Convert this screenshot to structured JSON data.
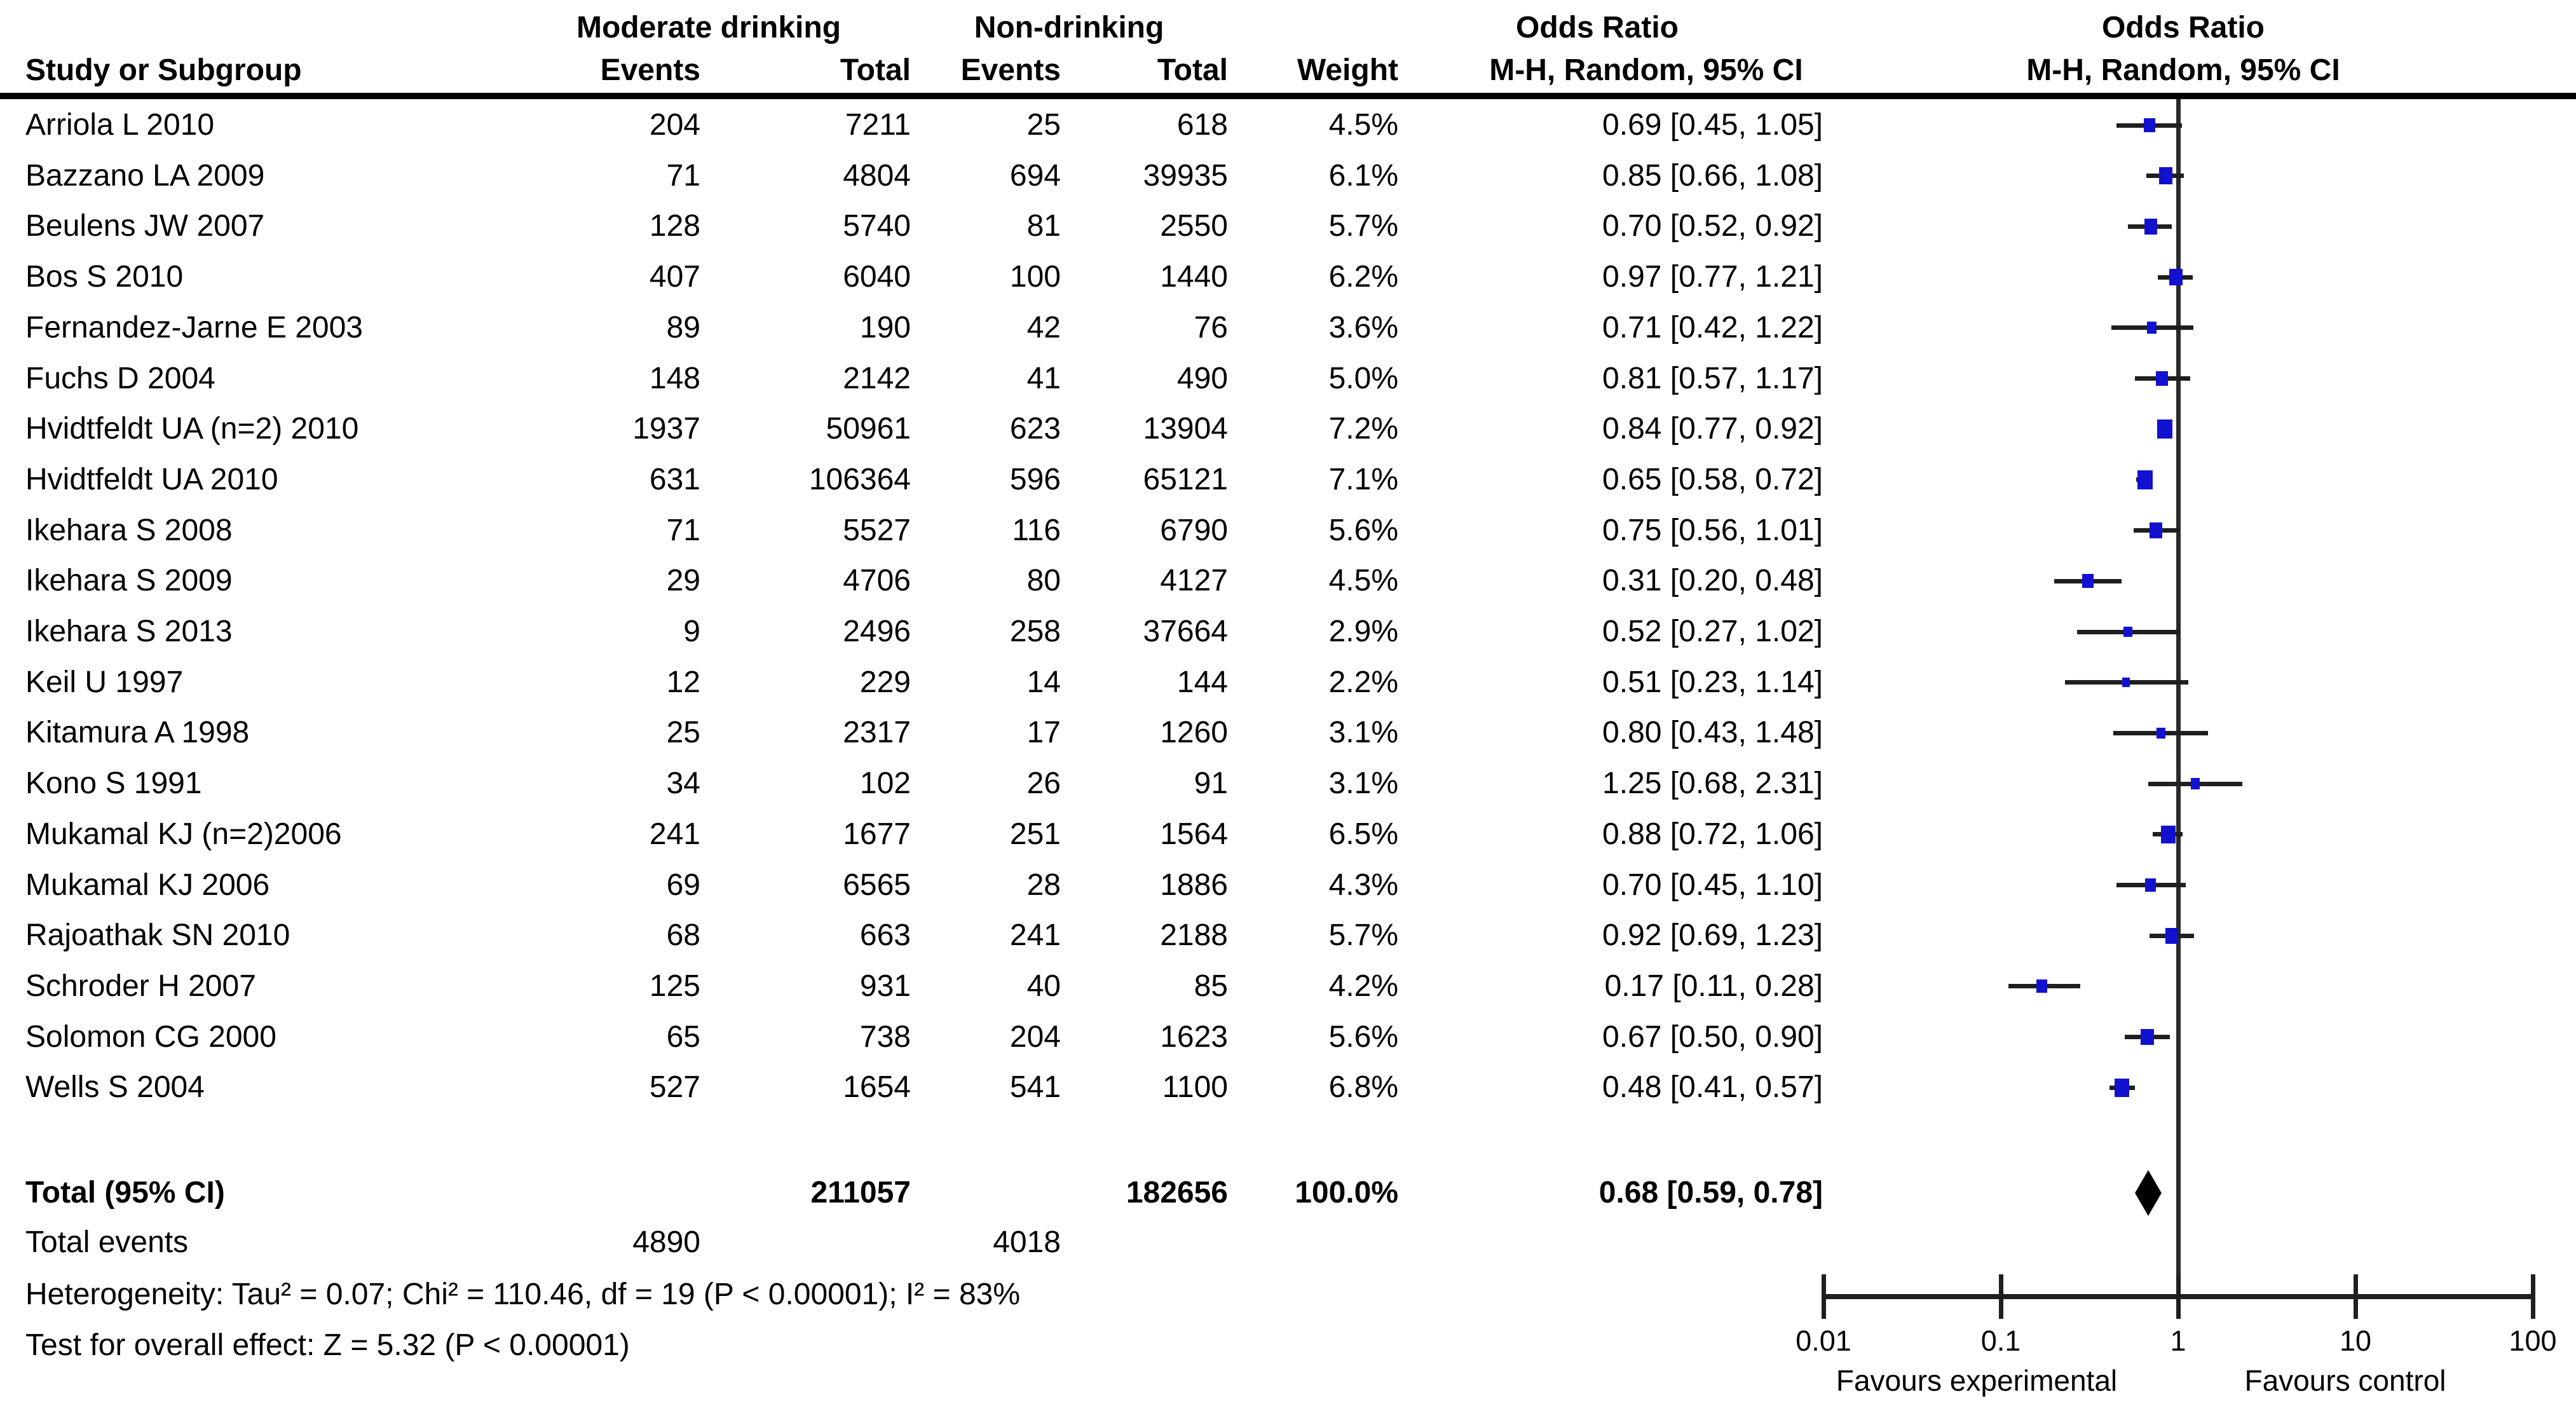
{
  "chart_data": {
    "type": "scatter",
    "subtype": "forest-plot-meta-analysis",
    "scale": "log",
    "group_headers": {
      "experimental": "Moderate drinking",
      "control": "Non-drinking",
      "or_text_col": "Odds Ratio",
      "or_plot_col": "Odds Ratio"
    },
    "column_headers": {
      "study": "Study or Subgroup",
      "events1": "Events",
      "total1": "Total",
      "events2": "Events",
      "total2": "Total",
      "weight": "Weight",
      "mh1": "M-H, Random, 95% CI",
      "mh2": "M-H, Random, 95% CI"
    },
    "studies": [
      {
        "name": "Arriola L 2010",
        "events1": "204",
        "total1": "7211",
        "events2": "25",
        "total2": "618",
        "weight": "4.5%",
        "weight_val": 4.5,
        "or_text": "0.69 [0.45, 1.05]",
        "or": 0.69,
        "lo": 0.45,
        "hi": 1.05
      },
      {
        "name": "Bazzano LA 2009",
        "events1": "71",
        "total1": "4804",
        "events2": "694",
        "total2": "39935",
        "weight": "6.1%",
        "weight_val": 6.1,
        "or_text": "0.85 [0.66, 1.08]",
        "or": 0.85,
        "lo": 0.66,
        "hi": 1.08
      },
      {
        "name": "Beulens JW 2007",
        "events1": "128",
        "total1": "5740",
        "events2": "81",
        "total2": "2550",
        "weight": "5.7%",
        "weight_val": 5.7,
        "or_text": "0.70 [0.52, 0.92]",
        "or": 0.7,
        "lo": 0.52,
        "hi": 0.92
      },
      {
        "name": "Bos S 2010",
        "events1": "407",
        "total1": "6040",
        "events2": "100",
        "total2": "1440",
        "weight": "6.2%",
        "weight_val": 6.2,
        "or_text": "0.97 [0.77, 1.21]",
        "or": 0.97,
        "lo": 0.77,
        "hi": 1.21
      },
      {
        "name": "Fernandez-Jarne E 2003",
        "events1": "89",
        "total1": "190",
        "events2": "42",
        "total2": "76",
        "weight": "3.6%",
        "weight_val": 3.6,
        "or_text": "0.71 [0.42, 1.22]",
        "or": 0.71,
        "lo": 0.42,
        "hi": 1.22
      },
      {
        "name": "Fuchs D 2004",
        "events1": "148",
        "total1": "2142",
        "events2": "41",
        "total2": "490",
        "weight": "5.0%",
        "weight_val": 5.0,
        "or_text": "0.81 [0.57, 1.17]",
        "or": 0.81,
        "lo": 0.57,
        "hi": 1.17
      },
      {
        "name": "Hvidtfeldt UA (n=2) 2010",
        "events1": "1937",
        "total1": "50961",
        "events2": "623",
        "total2": "13904",
        "weight": "7.2%",
        "weight_val": 7.2,
        "or_text": "0.84 [0.77, 0.92]",
        "or": 0.84,
        "lo": 0.77,
        "hi": 0.92
      },
      {
        "name": "Hvidtfeldt UA 2010",
        "events1": "631",
        "total1": "106364",
        "events2": "596",
        "total2": "65121",
        "weight": "7.1%",
        "weight_val": 7.1,
        "or_text": "0.65 [0.58, 0.72]",
        "or": 0.65,
        "lo": 0.58,
        "hi": 0.72
      },
      {
        "name": "Ikehara S 2008",
        "events1": "71",
        "total1": "5527",
        "events2": "116",
        "total2": "6790",
        "weight": "5.6%",
        "weight_val": 5.6,
        "or_text": "0.75 [0.56, 1.01]",
        "or": 0.75,
        "lo": 0.56,
        "hi": 1.01
      },
      {
        "name": "Ikehara S 2009",
        "events1": "29",
        "total1": "4706",
        "events2": "80",
        "total2": "4127",
        "weight": "4.5%",
        "weight_val": 4.5,
        "or_text": "0.31 [0.20, 0.48]",
        "or": 0.31,
        "lo": 0.2,
        "hi": 0.48
      },
      {
        "name": "Ikehara S 2013",
        "events1": "9",
        "total1": "2496",
        "events2": "258",
        "total2": "37664",
        "weight": "2.9%",
        "weight_val": 2.9,
        "or_text": "0.52 [0.27, 1.02]",
        "or": 0.52,
        "lo": 0.27,
        "hi": 1.02
      },
      {
        "name": "Keil U 1997",
        "events1": "12",
        "total1": "229",
        "events2": "14",
        "total2": "144",
        "weight": "2.2%",
        "weight_val": 2.2,
        "or_text": "0.51 [0.23, 1.14]",
        "or": 0.51,
        "lo": 0.23,
        "hi": 1.14
      },
      {
        "name": "Kitamura A 1998",
        "events1": "25",
        "total1": "2317",
        "events2": "17",
        "total2": "1260",
        "weight": "3.1%",
        "weight_val": 3.1,
        "or_text": "0.80 [0.43, 1.48]",
        "or": 0.8,
        "lo": 0.43,
        "hi": 1.48
      },
      {
        "name": "Kono S 1991",
        "events1": "34",
        "total1": "102",
        "events2": "26",
        "total2": "91",
        "weight": "3.1%",
        "weight_val": 3.1,
        "or_text": "1.25 [0.68, 2.31]",
        "or": 1.25,
        "lo": 0.68,
        "hi": 2.31
      },
      {
        "name": "Mukamal KJ (n=2)2006",
        "events1": "241",
        "total1": "1677",
        "events2": "251",
        "total2": "1564",
        "weight": "6.5%",
        "weight_val": 6.5,
        "or_text": "0.88 [0.72, 1.06]",
        "or": 0.88,
        "lo": 0.72,
        "hi": 1.06
      },
      {
        "name": "Mukamal KJ 2006",
        "events1": "69",
        "total1": "6565",
        "events2": "28",
        "total2": "1886",
        "weight": "4.3%",
        "weight_val": 4.3,
        "or_text": "0.70 [0.45, 1.10]",
        "or": 0.7,
        "lo": 0.45,
        "hi": 1.1
      },
      {
        "name": "Rajoathak SN 2010",
        "events1": "68",
        "total1": "663",
        "events2": "241",
        "total2": "2188",
        "weight": "5.7%",
        "weight_val": 5.7,
        "or_text": "0.92 [0.69, 1.23]",
        "or": 0.92,
        "lo": 0.69,
        "hi": 1.23
      },
      {
        "name": "Schroder H 2007",
        "events1": "125",
        "total1": "931",
        "events2": "40",
        "total2": "85",
        "weight": "4.2%",
        "weight_val": 4.2,
        "or_text": "0.17 [0.11, 0.28]",
        "or": 0.17,
        "lo": 0.11,
        "hi": 0.28
      },
      {
        "name": "Solomon CG 2000",
        "events1": "65",
        "total1": "738",
        "events2": "204",
        "total2": "1623",
        "weight": "5.6%",
        "weight_val": 5.6,
        "or_text": "0.67 [0.50, 0.90]",
        "or": 0.67,
        "lo": 0.5,
        "hi": 0.9
      },
      {
        "name": "Wells S 2004",
        "events1": "527",
        "total1": "1654",
        "events2": "541",
        "total2": "1100",
        "weight": "6.8%",
        "weight_val": 6.8,
        "or_text": "0.48 [0.41, 0.57]",
        "or": 0.48,
        "lo": 0.41,
        "hi": 0.57
      }
    ],
    "total": {
      "label": "Total (95% CI)",
      "total1": "211057",
      "total2": "182656",
      "weight": "100.0%",
      "or_text": "0.68 [0.59, 0.78]",
      "or": 0.68,
      "lo": 0.59,
      "hi": 0.78
    },
    "total_events": {
      "label": "Total events",
      "events1": "4890",
      "events2": "4018"
    },
    "heterogeneity": "Heterogeneity: Tau² = 0.07; Chi² = 110.46, df = 19 (P < 0.00001); I² = 83%",
    "overall_effect": "Test for overall effect: Z = 5.32 (P < 0.00001)",
    "axis": {
      "ticks": [
        0.01,
        0.1,
        1,
        10,
        100
      ],
      "min": 0.01,
      "max": 100,
      "reference": 1
    },
    "favours_left": "Favours experimental",
    "favours_right": "Favours control",
    "colors": {
      "square": "#1111cf",
      "diamond": "#000000",
      "line": "#1f1f1f",
      "text": "#000000"
    }
  }
}
